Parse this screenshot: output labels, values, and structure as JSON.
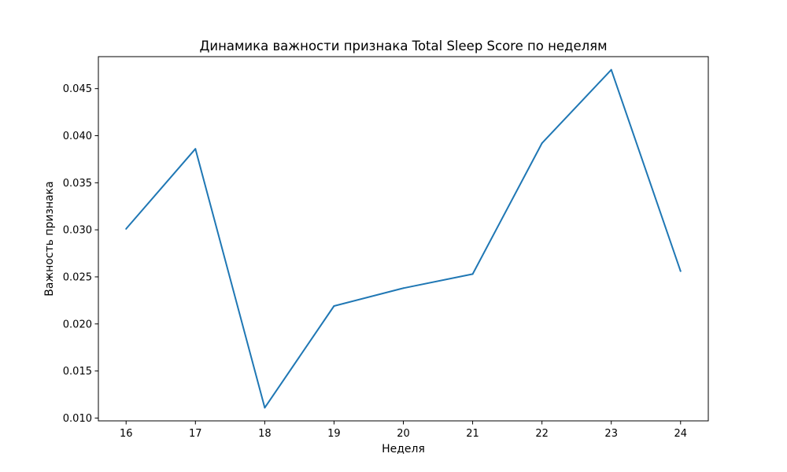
{
  "chart_data": {
    "type": "line",
    "title": "Динамика важности признака Total Sleep Score по неделям",
    "xlabel": "Неделя",
    "ylabel": "Важность признака",
    "x": [
      16,
      17,
      18,
      19,
      20,
      21,
      22,
      23,
      24
    ],
    "series": [
      {
        "values": [
          0.0301,
          0.0386,
          0.0111,
          0.0219,
          0.0238,
          0.0253,
          0.0392,
          0.047,
          0.0256
        ],
        "color": "#1f77b4"
      }
    ],
    "xlim": [
      15.6,
      24.4
    ],
    "ylim": [
      0.0097,
      0.0484
    ],
    "x_ticks": [
      "16",
      "17",
      "18",
      "19",
      "20",
      "21",
      "22",
      "23",
      "24"
    ],
    "y_ticks": [
      "0.010",
      "0.015",
      "0.020",
      "0.025",
      "0.030",
      "0.035",
      "0.040",
      "0.045"
    ],
    "grid": false,
    "legend": "none"
  }
}
